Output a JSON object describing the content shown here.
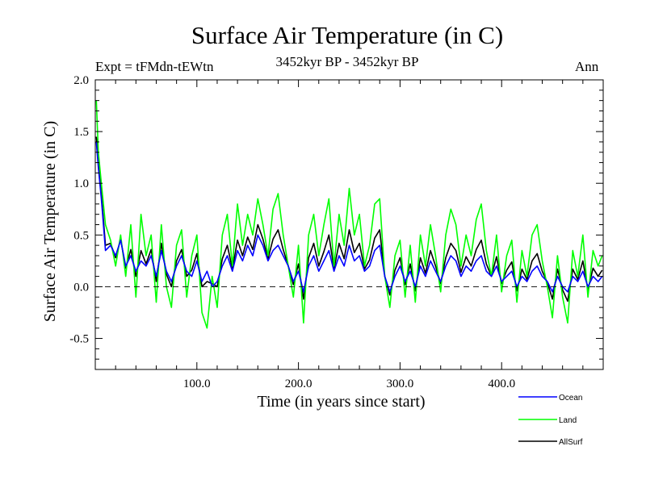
{
  "chart_data": {
    "type": "line",
    "title": "Surface Air Temperature (in C)",
    "subtitle_left": "Expt = tFMdn-tEWtn",
    "subtitle_center": "3452kyr BP - 3452kyr BP",
    "subtitle_right": "Ann",
    "xlabel": "Time (in years since start)",
    "ylabel": "Surface Air Temperature (in C)",
    "xlim": [
      0,
      500
    ],
    "ylim": [
      -0.8,
      2.0
    ],
    "xticks": [
      100,
      200,
      300,
      400
    ],
    "xtick_labels": [
      "100.0",
      "200.0",
      "300.0",
      "400.0"
    ],
    "yticks": [
      -0.5,
      0.0,
      0.5,
      1.0,
      1.5,
      2.0
    ],
    "ytick_labels": [
      "-0.5",
      "0.0",
      "0.5",
      "1.0",
      "1.5",
      "2.0"
    ],
    "reference_line": {
      "y": 0.0,
      "style": "dashed"
    },
    "legend": [
      "Ocean",
      "Land",
      "AllSurf"
    ],
    "colors": {
      "Ocean": "#0000ff",
      "Land": "#00ff00",
      "AllSurf": "#000000"
    },
    "draw_order": [
      "AllSurf",
      "Land",
      "Ocean"
    ],
    "series": [
      {
        "name": "Ocean",
        "color": "#0000ff",
        "x": [
          1,
          3,
          6,
          10,
          15,
          20,
          25,
          30,
          35,
          40,
          45,
          50,
          55,
          60,
          65,
          70,
          75,
          80,
          85,
          90,
          95,
          100,
          105,
          110,
          115,
          120,
          125,
          130,
          135,
          140,
          145,
          150,
          155,
          160,
          165,
          170,
          175,
          180,
          185,
          190,
          195,
          200,
          205,
          210,
          215,
          220,
          225,
          230,
          235,
          240,
          245,
          250,
          255,
          260,
          265,
          270,
          275,
          280,
          285,
          290,
          295,
          300,
          305,
          310,
          315,
          320,
          325,
          330,
          335,
          340,
          345,
          350,
          355,
          360,
          365,
          370,
          375,
          380,
          385,
          390,
          395,
          400,
          405,
          410,
          415,
          420,
          425,
          430,
          435,
          440,
          445,
          450,
          455,
          460,
          465,
          470,
          475,
          480,
          485,
          490,
          495,
          499
        ],
        "y": [
          1.4,
          1.15,
          0.85,
          0.35,
          0.4,
          0.3,
          0.45,
          0.2,
          0.3,
          0.15,
          0.25,
          0.2,
          0.3,
          0.1,
          0.35,
          0.15,
          0.05,
          0.2,
          0.3,
          0.15,
          0.1,
          0.25,
          0.05,
          0.15,
          0.0,
          0.05,
          0.2,
          0.3,
          0.15,
          0.35,
          0.25,
          0.4,
          0.3,
          0.5,
          0.4,
          0.25,
          0.35,
          0.4,
          0.3,
          0.2,
          0.05,
          0.15,
          -0.05,
          0.2,
          0.3,
          0.15,
          0.25,
          0.35,
          0.15,
          0.3,
          0.2,
          0.4,
          0.25,
          0.3,
          0.15,
          0.2,
          0.35,
          0.4,
          0.1,
          -0.05,
          0.1,
          0.2,
          0.05,
          0.15,
          0.0,
          0.2,
          0.1,
          0.25,
          0.15,
          0.05,
          0.2,
          0.3,
          0.25,
          0.1,
          0.2,
          0.15,
          0.25,
          0.3,
          0.15,
          0.1,
          0.2,
          0.05,
          0.1,
          0.15,
          0.0,
          0.1,
          0.05,
          0.15,
          0.2,
          0.1,
          0.05,
          -0.05,
          0.1,
          0.0,
          -0.05,
          0.1,
          0.05,
          0.15,
          0.0,
          0.1,
          0.05,
          0.1
        ]
      },
      {
        "name": "Land",
        "color": "#00ff00",
        "x": [
          1,
          3,
          6,
          10,
          15,
          20,
          25,
          30,
          35,
          40,
          45,
          50,
          55,
          60,
          65,
          70,
          75,
          80,
          85,
          90,
          95,
          100,
          105,
          110,
          115,
          120,
          125,
          130,
          135,
          140,
          145,
          150,
          155,
          160,
          165,
          170,
          175,
          180,
          185,
          190,
          195,
          200,
          205,
          210,
          215,
          220,
          225,
          230,
          235,
          240,
          245,
          250,
          255,
          260,
          265,
          270,
          275,
          280,
          285,
          290,
          295,
          300,
          305,
          310,
          315,
          320,
          325,
          330,
          335,
          340,
          345,
          350,
          355,
          360,
          365,
          370,
          375,
          380,
          385,
          390,
          395,
          400,
          405,
          410,
          415,
          420,
          425,
          430,
          435,
          440,
          445,
          450,
          455,
          460,
          465,
          470,
          475,
          480,
          485,
          490,
          495,
          499
        ],
        "y": [
          1.8,
          1.3,
          1.0,
          0.6,
          0.45,
          0.2,
          0.5,
          0.1,
          0.6,
          -0.1,
          0.7,
          0.3,
          0.5,
          -0.15,
          0.6,
          0.0,
          -0.2,
          0.4,
          0.55,
          -0.1,
          0.3,
          0.5,
          -0.25,
          -0.4,
          0.1,
          -0.2,
          0.5,
          0.7,
          0.2,
          0.8,
          0.4,
          0.7,
          0.5,
          0.85,
          0.6,
          0.3,
          0.75,
          0.9,
          0.5,
          0.2,
          -0.1,
          0.4,
          -0.35,
          0.5,
          0.7,
          0.3,
          0.6,
          0.85,
          0.2,
          0.7,
          0.4,
          0.95,
          0.5,
          0.7,
          0.2,
          0.4,
          0.8,
          0.85,
          0.1,
          -0.2,
          0.3,
          0.45,
          -0.1,
          0.4,
          -0.15,
          0.5,
          0.2,
          0.6,
          0.3,
          -0.05,
          0.5,
          0.75,
          0.6,
          0.2,
          0.5,
          0.3,
          0.65,
          0.8,
          0.35,
          0.1,
          0.5,
          -0.05,
          0.3,
          0.45,
          -0.15,
          0.35,
          0.1,
          0.5,
          0.6,
          0.25,
          0.0,
          -0.3,
          0.3,
          -0.1,
          -0.35,
          0.35,
          0.1,
          0.5,
          -0.1,
          0.35,
          0.2,
          0.3
        ]
      },
      {
        "name": "AllSurf",
        "color": "#000000",
        "x": [
          1,
          3,
          6,
          10,
          15,
          20,
          25,
          30,
          35,
          40,
          45,
          50,
          55,
          60,
          65,
          70,
          75,
          80,
          85,
          90,
          95,
          100,
          105,
          110,
          115,
          120,
          125,
          130,
          135,
          140,
          145,
          150,
          155,
          160,
          165,
          170,
          175,
          180,
          185,
          190,
          195,
          200,
          205,
          210,
          215,
          220,
          225,
          230,
          235,
          240,
          245,
          250,
          255,
          260,
          265,
          270,
          275,
          280,
          285,
          290,
          295,
          300,
          305,
          310,
          315,
          320,
          325,
          330,
          335,
          340,
          345,
          350,
          355,
          360,
          365,
          370,
          375,
          380,
          385,
          390,
          395,
          400,
          405,
          410,
          415,
          420,
          425,
          430,
          435,
          440,
          445,
          450,
          455,
          460,
          465,
          470,
          475,
          480,
          485,
          490,
          495,
          499
        ],
        "y": [
          1.45,
          1.2,
          0.9,
          0.4,
          0.42,
          0.28,
          0.46,
          0.18,
          0.36,
          0.1,
          0.35,
          0.22,
          0.36,
          0.05,
          0.42,
          0.12,
          0.0,
          0.25,
          0.36,
          0.1,
          0.16,
          0.32,
          0.0,
          0.05,
          0.03,
          0.0,
          0.27,
          0.4,
          0.17,
          0.45,
          0.3,
          0.48,
          0.36,
          0.6,
          0.46,
          0.27,
          0.46,
          0.55,
          0.36,
          0.2,
          0.02,
          0.22,
          -0.12,
          0.28,
          0.42,
          0.2,
          0.34,
          0.5,
          0.17,
          0.42,
          0.27,
          0.55,
          0.33,
          0.42,
          0.17,
          0.26,
          0.47,
          0.55,
          0.1,
          -0.08,
          0.16,
          0.28,
          0.02,
          0.22,
          -0.04,
          0.28,
          0.13,
          0.35,
          0.2,
          0.03,
          0.28,
          0.42,
          0.35,
          0.14,
          0.29,
          0.2,
          0.36,
          0.45,
          0.22,
          0.1,
          0.29,
          0.03,
          0.16,
          0.24,
          -0.04,
          0.17,
          0.07,
          0.25,
          0.32,
          0.15,
          0.04,
          -0.12,
          0.17,
          -0.03,
          -0.14,
          0.17,
          0.07,
          0.25,
          -0.03,
          0.18,
          0.1,
          0.16
        ]
      }
    ]
  }
}
